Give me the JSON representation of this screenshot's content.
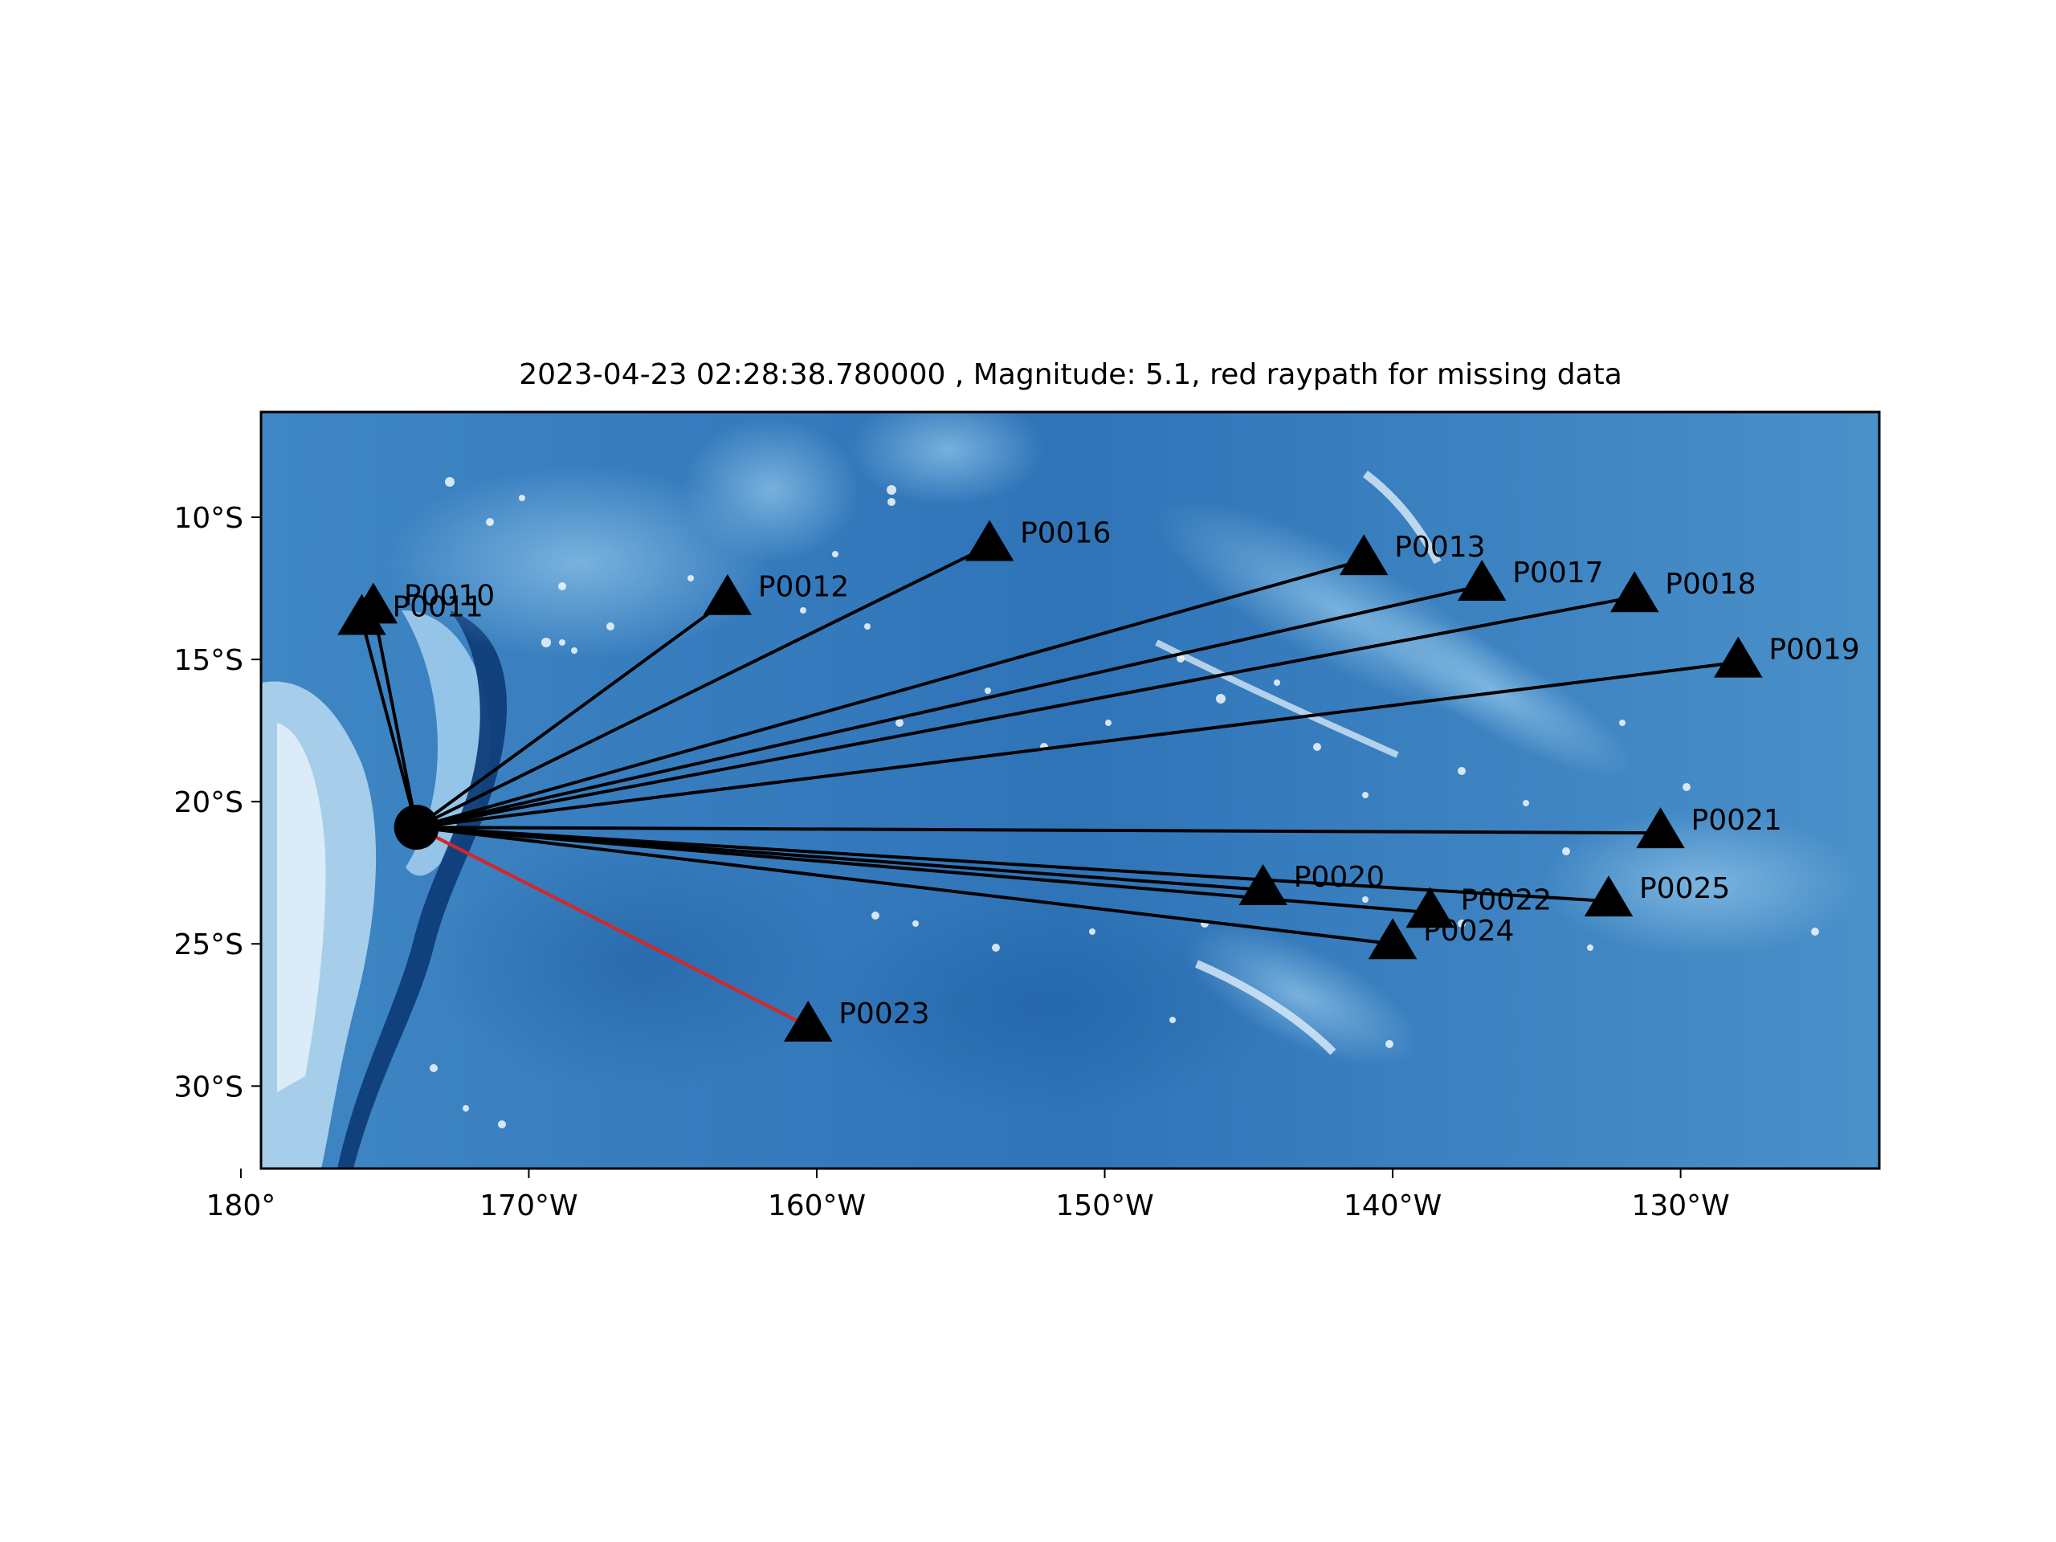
{
  "chart_data": {
    "type": "scatter",
    "title": "2023-04-23 02:28:38.780000 , Magnitude: 5.1, red raypath for missing data",
    "map_extent": {
      "lon_min": -179.3,
      "lon_max": -123.1,
      "lat_min": -32.9,
      "lat_max": -6.3
    },
    "x_ticks": [
      {
        "lon": -180,
        "label": "180°"
      },
      {
        "lon": -170,
        "label": "170°W"
      },
      {
        "lon": -160,
        "label": "160°W"
      },
      {
        "lon": -150,
        "label": "150°W"
      },
      {
        "lon": -140,
        "label": "140°W"
      },
      {
        "lon": -130,
        "label": "130°W"
      }
    ],
    "y_ticks": [
      {
        "lat": -10,
        "label": "10°S"
      },
      {
        "lat": -15,
        "label": "15°S"
      },
      {
        "lat": -20,
        "label": "20°S"
      },
      {
        "lat": -25,
        "label": "25°S"
      },
      {
        "lat": -30,
        "label": "30°S"
      }
    ],
    "event": {
      "lon": -173.9,
      "lat": -20.9
    },
    "stations": [
      {
        "name": "P0010",
        "lon": -175.4,
        "lat": -13.2,
        "missing": false
      },
      {
        "name": "P0011",
        "lon": -175.8,
        "lat": -13.6,
        "missing": false
      },
      {
        "name": "P0012",
        "lon": -163.1,
        "lat": -12.9,
        "missing": false
      },
      {
        "name": "P0016",
        "lon": -154.0,
        "lat": -11.0,
        "missing": false
      },
      {
        "name": "P0013",
        "lon": -141.0,
        "lat": -11.5,
        "missing": false
      },
      {
        "name": "P0017",
        "lon": -136.9,
        "lat": -12.4,
        "missing": false
      },
      {
        "name": "P0018",
        "lon": -131.6,
        "lat": -12.8,
        "missing": false
      },
      {
        "name": "P0019",
        "lon": -128.0,
        "lat": -15.1,
        "missing": false
      },
      {
        "name": "P0021",
        "lon": -130.7,
        "lat": -21.1,
        "missing": false
      },
      {
        "name": "P0020",
        "lon": -144.5,
        "lat": -23.1,
        "missing": false
      },
      {
        "name": "P0022",
        "lon": -138.7,
        "lat": -23.9,
        "missing": false
      },
      {
        "name": "P0025",
        "lon": -132.5,
        "lat": -23.5,
        "missing": false
      },
      {
        "name": "P0024",
        "lon": -140.0,
        "lat": -25.0,
        "missing": false
      },
      {
        "name": "P0023",
        "lon": -160.3,
        "lat": -27.9,
        "missing": true
      }
    ],
    "colors": {
      "raypath": "#000000",
      "missing_raypath": "#d62728",
      "station": "#000000",
      "event": "#000000",
      "ocean": "#3f86c4"
    }
  }
}
